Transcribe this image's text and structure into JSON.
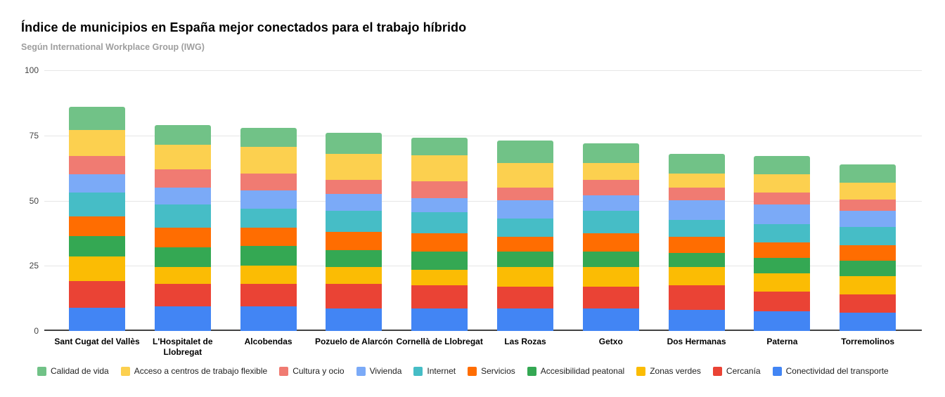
{
  "header": {
    "title_note": "bound from chart_data.title and chart_data.subtitle"
  },
  "colors": {
    "background": "#ffffff",
    "gridline": "#e6e6e6",
    "axis_line": "#424242",
    "title_text": "#000000",
    "subtitle_text": "#9e9e9e",
    "axis_tick_text": "#444444",
    "legend_text": "#212121"
  },
  "chart_data": {
    "type": "bar",
    "stacked": true,
    "title": "Índice de municipios en España mejor conectados para el trabajo híbrido",
    "subtitle": "Según International Workplace Group (IWG)",
    "xlabel": "",
    "ylabel": "",
    "ylim": [
      0,
      100
    ],
    "yticks": [
      0,
      25,
      50,
      75,
      100
    ],
    "grid": "horizontal",
    "legend_position": "bottom",
    "legend_display_order": "top-of-stack-first",
    "categories": [
      "Sant Cugat del Vallès",
      "L'Hospitalet de Llobregat",
      "Alcobendas",
      "Pozuelo de Alarcón",
      "Cornellà de Llobregat",
      "Las Rozas",
      "Getxo",
      "Dos Hermanas",
      "Paterna",
      "Torremolinos"
    ],
    "stack_order": "bottom-to-top",
    "series": [
      {
        "name": "Conectividad del transporte",
        "color": "#4285F4",
        "values": [
          9,
          9.5,
          9.5,
          8.5,
          8.5,
          8.5,
          8.5,
          8,
          7.5,
          7
        ]
      },
      {
        "name": "Cercanía",
        "color": "#EA4335",
        "values": [
          10,
          8.5,
          8.5,
          9.5,
          9,
          8.5,
          8.5,
          9.5,
          7.5,
          7
        ]
      },
      {
        "name": "Zonas verdes",
        "color": "#FBBC04",
        "values": [
          9.5,
          6.5,
          7,
          6.5,
          6,
          7.5,
          7.5,
          7,
          7,
          7
        ]
      },
      {
        "name": "Accesibilidad peatonal",
        "color": "#34A853",
        "values": [
          8,
          7.5,
          7.5,
          6.5,
          7,
          6,
          6,
          5.5,
          6,
          6
        ]
      },
      {
        "name": "Servicios",
        "color": "#FF6D01",
        "values": [
          7.5,
          7.5,
          7,
          7,
          7,
          5.5,
          7,
          6,
          6,
          6
        ]
      },
      {
        "name": "Internet",
        "color": "#46BDC6",
        "values": [
          9,
          9,
          7.5,
          8,
          8,
          7,
          8.5,
          6.5,
          7,
          7
        ]
      },
      {
        "name": "Vivienda",
        "color": "#7BAAF7",
        "values": [
          7,
          6.5,
          7,
          6.5,
          5.5,
          7,
          6,
          7.5,
          7.5,
          6
        ]
      },
      {
        "name": "Cultura y ocio",
        "color": "#F07B72",
        "values": [
          7,
          7,
          6.5,
          5.5,
          6.5,
          5,
          6,
          5,
          4.5,
          4.5
        ]
      },
      {
        "name": "Acceso a centros de trabajo flexible",
        "color": "#FCD04F",
        "values": [
          10,
          9.5,
          10,
          10,
          10,
          9.5,
          6.5,
          5.5,
          7,
          6.5
        ]
      },
      {
        "name": "Calidad de vida",
        "color": "#71C287",
        "values": [
          9,
          7.5,
          7.5,
          8,
          6.5,
          8.5,
          7.5,
          7.5,
          7,
          7
        ]
      }
    ],
    "totals": [
      86,
      79,
      78,
      76,
      74,
      73,
      72,
      68,
      67,
      64
    ]
  }
}
